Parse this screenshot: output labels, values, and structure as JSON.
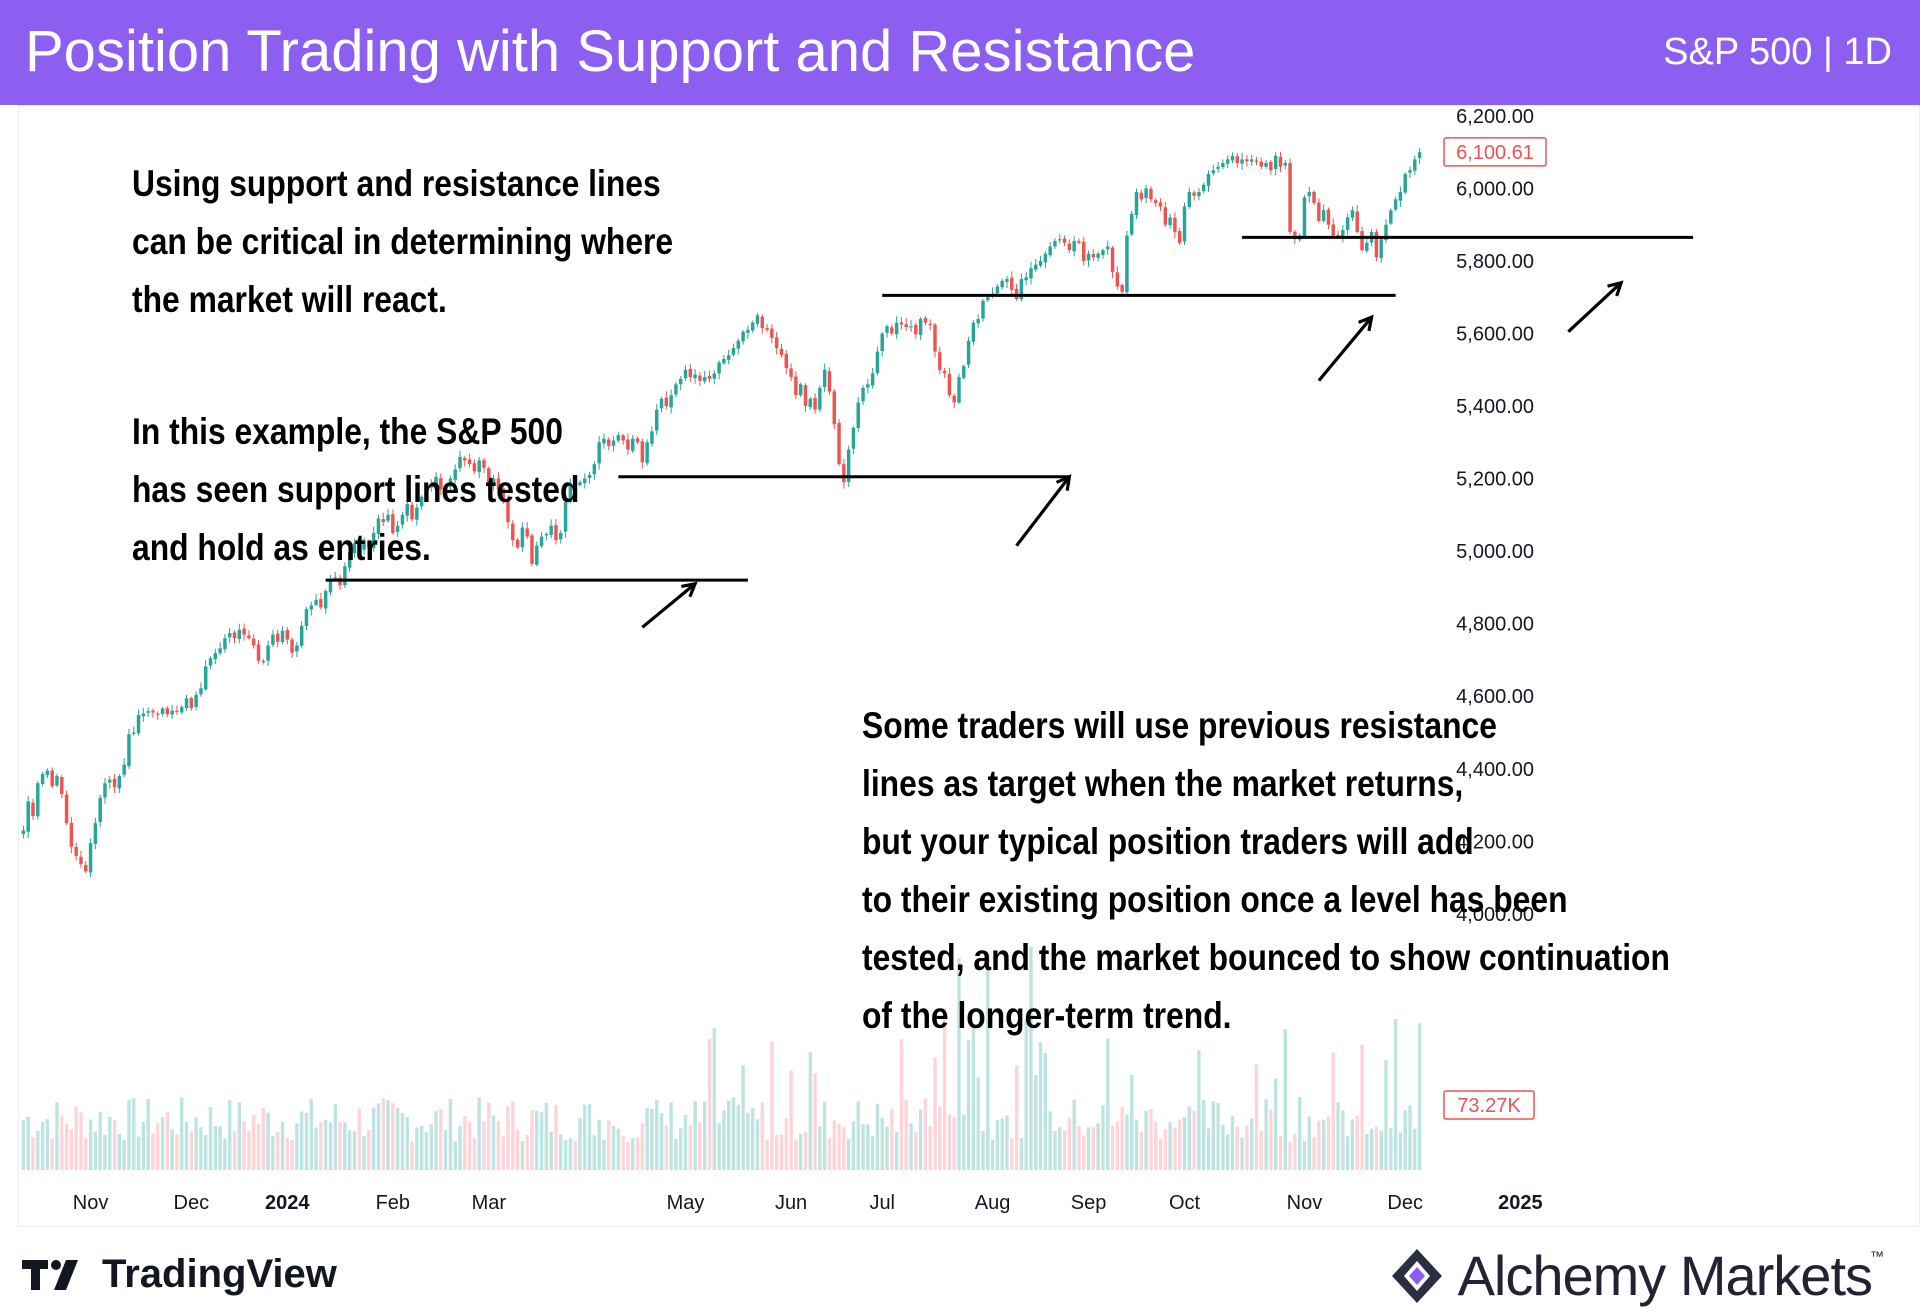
{
  "header": {
    "title": "Position Trading with Support and Resistance",
    "symbol": "S&P 500 | 1D"
  },
  "annotations": {
    "intro": [
      "Using support and resistance lines",
      "can be critical in determining where",
      "the market will react."
    ],
    "example": [
      "In this example, the S&P 500",
      "has seen support lines tested",
      "and hold as entries."
    ],
    "traders": [
      "Some traders will use previous resistance",
      "lines as target when the market returns,",
      "but your typical position traders will add",
      "to their existing position once a level has been",
      "tested, and the market bounced to show continuation",
      "of the longer-term trend."
    ]
  },
  "branding": {
    "left": "TradingView",
    "right": "Alchemy Markets",
    "trademark": "™"
  },
  "colors": {
    "banner": "#8c5ff0",
    "up": "#26a69a",
    "down": "#ef5350",
    "up_volume": "#b2dfdb",
    "down_volume": "#ffcdd2",
    "price_label": "#ef5350"
  },
  "chart_data": {
    "type": "candlestick",
    "ylim": [
      3870,
      6230
    ],
    "y_ticks": [
      "4,000.00",
      "4,200.00",
      "4,400.00",
      "4,600.00",
      "4,800.00",
      "5,000.00",
      "5,200.00",
      "5,400.00",
      "5,600.00",
      "5,800.00",
      "6,000.00",
      "6,200.00"
    ],
    "y_tick_values": [
      4000,
      4200,
      4400,
      4600,
      4800,
      5000,
      5200,
      5400,
      5600,
      5800,
      6000,
      6200
    ],
    "x_ticks": [
      "Nov",
      "Dec",
      "2024",
      "Feb",
      "Mar",
      "May",
      "Jun",
      "Jul",
      "Aug",
      "Sep",
      "Oct",
      "Nov",
      "Dec",
      "2025"
    ],
    "x_tick_bold": [
      false,
      false,
      true,
      false,
      false,
      false,
      false,
      false,
      false,
      false,
      false,
      false,
      false,
      true
    ],
    "x_tick_index": [
      14,
      35,
      55,
      77,
      97,
      138,
      160,
      179,
      202,
      222,
      242,
      267,
      288,
      312
    ],
    "last_price": 6100.61,
    "last_price_label": "6,100.61",
    "last_volume_label": "73.27K",
    "closes": [
      4230,
      4310,
      4270,
      4360,
      4385,
      4395,
      4352,
      4380,
      4330,
      4250,
      4185,
      4160,
      4137,
      4117,
      4195,
      4250,
      4320,
      4360,
      4370,
      4350,
      4380,
      4411,
      4495,
      4500,
      4548,
      4552,
      4559,
      4555,
      4550,
      4566,
      4550,
      4560,
      4557,
      4570,
      4594,
      4567,
      4604,
      4622,
      4682,
      4705,
      4719,
      4732,
      4760,
      4774,
      4760,
      4783,
      4770,
      4760,
      4740,
      4698,
      4697,
      4740,
      4770,
      4750,
      4780,
      4756,
      4720,
      4740,
      4794,
      4840,
      4850,
      4865,
      4845,
      4890,
      4924,
      4928,
      4906,
      4958,
      4997,
      5022,
      5005,
      5030,
      5010,
      5050,
      5090,
      5080,
      5100,
      5050,
      5070,
      5100,
      5130,
      5088,
      5120,
      5150,
      5175,
      5185,
      5205,
      5170,
      5180,
      5200,
      5225,
      5260,
      5250,
      5240,
      5220,
      5250,
      5230,
      5180,
      5200,
      5170,
      5145,
      5080,
      5030,
      5010,
      5065,
      5040,
      4965,
      5015,
      5040,
      5047,
      5070,
      5030,
      5050,
      5135,
      5185,
      5180,
      5190,
      5200,
      5210,
      5240,
      5300,
      5310,
      5290,
      5305,
      5320,
      5305,
      5280,
      5310,
      5300,
      5245,
      5300,
      5330,
      5390,
      5420,
      5400,
      5430,
      5460,
      5475,
      5500,
      5480,
      5487,
      5470,
      5480,
      5475,
      5490,
      5520,
      5530,
      5540,
      5560,
      5580,
      5605,
      5610,
      5630,
      5650,
      5615,
      5610,
      5588,
      5560,
      5540,
      5505,
      5480,
      5430,
      5460,
      5400,
      5420,
      5390,
      5450,
      5500,
      5440,
      5350,
      5240,
      5190,
      5280,
      5340,
      5410,
      5450,
      5460,
      5490,
      5550,
      5600,
      5620,
      5600,
      5630,
      5625,
      5618,
      5620,
      5598,
      5640,
      5630,
      5625,
      5550,
      5500,
      5490,
      5430,
      5410,
      5480,
      5510,
      5580,
      5630,
      5640,
      5690,
      5700,
      5710,
      5730,
      5745,
      5750,
      5720,
      5695,
      5750,
      5755,
      5780,
      5790,
      5800,
      5820,
      5840,
      5855,
      5860,
      5850,
      5830,
      5855,
      5850,
      5800,
      5820,
      5810,
      5820,
      5830,
      5840,
      5770,
      5730,
      5715,
      5870,
      5930,
      5990,
      5970,
      6000,
      5970,
      5960,
      5950,
      5900,
      5920,
      5880,
      5850,
      5950,
      5990,
      5980,
      5990,
      6010,
      6040,
      6050,
      6060,
      6070,
      6080,
      6090,
      6070,
      6080,
      6075,
      6080,
      6075,
      6060,
      6070,
      6050,
      6090,
      6060,
      6070,
      5880,
      5860,
      5870,
      5975,
      5990,
      5960,
      5910,
      5940,
      5900,
      5870,
      5870,
      5885,
      5920,
      5940,
      5880,
      5830,
      5850,
      5880,
      5810,
      5860,
      5900,
      5940,
      5970,
      5990,
      6040,
      6050,
      6080,
      6100
    ],
    "annotation_lines": [
      {
        "start_index": 63,
        "end_index": 151,
        "y": 4920
      },
      {
        "start_index": 124,
        "end_index": 218,
        "y": 5205
      },
      {
        "start_index": 179,
        "end_index": 286,
        "y": 5705
      },
      {
        "start_index": 254,
        "end_index": 348,
        "y": 5865
      }
    ],
    "arrows": [
      {
        "from_index": 129,
        "from_y": 4790,
        "to_index": 140,
        "to_y": 4910
      },
      {
        "from_index": 207,
        "from_y": 5015,
        "to_index": 218,
        "to_y": 5205
      },
      {
        "from_index": 270,
        "from_y": 5470,
        "to_index": 281,
        "to_y": 5645
      },
      {
        "from_index": 322,
        "from_y": 5605,
        "to_index": 333,
        "to_y": 5740
      }
    ]
  }
}
